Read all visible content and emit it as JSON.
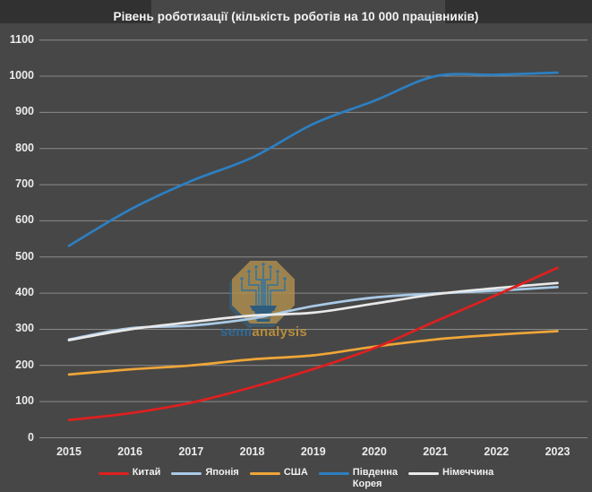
{
  "header": {
    "title": "Рівень роботизації (кількість роботів на 10 000 працівників)"
  },
  "watermark": {
    "brand_part1": "semi",
    "brand_part2": "analysis"
  },
  "colors": {
    "background": "#474747",
    "corner_strip": "#313131",
    "gridline": "#9b9b9b",
    "axis_text": "#ececec",
    "title_text": "#f4f4f4",
    "china": "#e01f1f",
    "japan": "#a9c9e6",
    "usa": "#efa638",
    "south_korea": "#2d7fc1",
    "germany": "#e9e9e9",
    "watermark_gold": "#ad8d50",
    "watermark_blue": "#2f7dae",
    "watermark_text_blue": "#2f6f9f",
    "watermark_text_gold": "#c2963c"
  },
  "chart_data": {
    "type": "line",
    "title": "Рівень роботизації (кількість роботів на 10 000 працівників)",
    "x": [
      2015,
      2016,
      2017,
      2018,
      2019,
      2020,
      2021,
      2022,
      2023
    ],
    "series": [
      {
        "key": "japan",
        "name": "Японія",
        "legend_label": "Японія",
        "color_key": "japan",
        "values": [
          272,
          303,
          310,
          330,
          364,
          388,
          399,
          407,
          417
        ]
      },
      {
        "key": "germany",
        "name": "Німеччина",
        "legend_label": "Німеччина",
        "color_key": "germany",
        "values": [
          270,
          300,
          320,
          338,
          346,
          371,
          397,
          414,
          428
        ]
      },
      {
        "key": "usa",
        "name": "США",
        "legend_label": "США",
        "color_key": "usa",
        "values": [
          175,
          189,
          200,
          217,
          228,
          252,
          272,
          285,
          295
        ]
      },
      {
        "key": "south-korea",
        "name": "Південна Корея",
        "legend_label": "Південна\nКорея",
        "color_key": "south_korea",
        "values": [
          531,
          631,
          710,
          775,
          868,
          932,
          1000,
          1004,
          1010
        ]
      },
      {
        "key": "china",
        "name": "Китай",
        "legend_label": "Китай",
        "color_key": "china",
        "values": [
          49,
          68,
          97,
          140,
          190,
          248,
          322,
          395,
          470
        ]
      }
    ],
    "legend_order": [
      "china",
      "japan",
      "usa",
      "south-korea",
      "germany"
    ],
    "xlabel": "",
    "ylabel": "",
    "ylim": [
      0,
      1100
    ],
    "yticks": [
      0,
      100,
      200,
      300,
      400,
      500,
      600,
      700,
      800,
      900,
      1000,
      1100
    ],
    "grid": true,
    "legend_position": "bottom"
  }
}
